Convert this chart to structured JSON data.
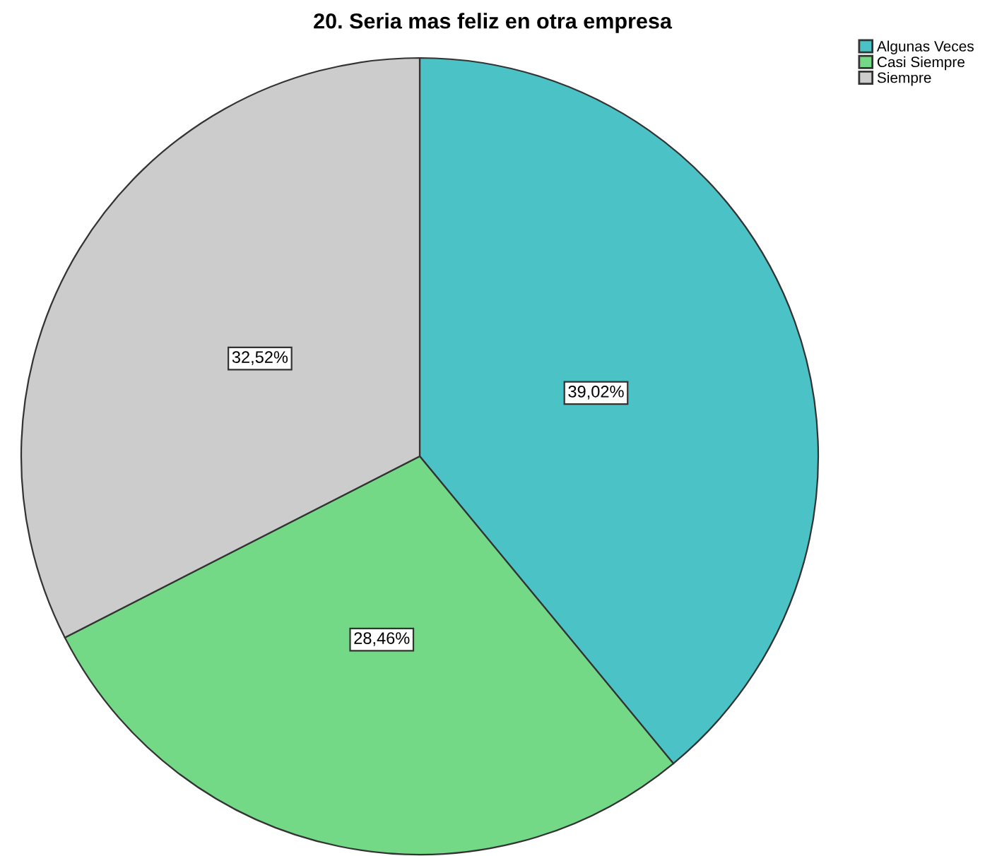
{
  "chart_data": {
    "type": "pie",
    "title": "20. Seria mas feliz en otra empresa",
    "categories": [
      "Algunas Veces",
      "Casi Siempre",
      "Siempre"
    ],
    "values": [
      39.02,
      28.46,
      32.52
    ],
    "colors": [
      "#4bc2c5",
      "#74d987",
      "#cccccc"
    ],
    "value_labels": [
      "39,02%",
      "28,46%",
      "32,52%"
    ],
    "legend": "top right"
  }
}
